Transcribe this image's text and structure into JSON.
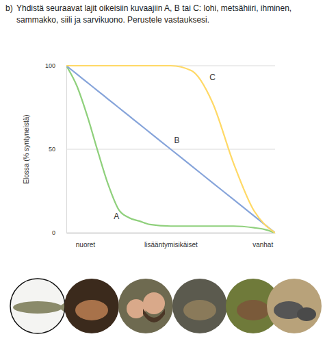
{
  "chart_data": {
    "type": "line",
    "title": "b) Yhdistä seuraavat lajit oikeisiin kuvaajiin A, B tai C: lohi, metsähiiri, ihminen, sammakko, siili ja sarvikuono. Perustele vastauksesi.",
    "y_label": "Elossa (% syntyneistä)",
    "x": [
      0,
      5,
      10,
      15,
      20,
      25,
      30,
      35,
      40,
      50,
      60,
      70,
      80,
      90,
      95,
      100
    ],
    "xlim": [
      0,
      100
    ],
    "xticks": [
      {
        "value": 9,
        "label": "nuoret"
      },
      {
        "value": 50,
        "label": "lisääntymisikäiset"
      },
      {
        "value": 94,
        "label": "vanhat"
      }
    ],
    "ylim": [
      0,
      100
    ],
    "yticks": [
      0,
      50,
      100
    ],
    "grid": true,
    "series": [
      {
        "name": "A",
        "color": "#8fd07c",
        "values": [
          100,
          88,
          70,
          49,
          29,
          14,
          9,
          7,
          5,
          4,
          4,
          4,
          4,
          3,
          2,
          0
        ]
      },
      {
        "name": "B",
        "color": "#86a4da",
        "values": [
          100,
          95,
          90,
          85,
          80,
          75,
          70,
          65,
          60,
          50,
          40,
          30,
          20,
          10,
          5,
          0
        ]
      },
      {
        "name": "C",
        "color": "#ffd966",
        "values": [
          100,
          100,
          100,
          100,
          100,
          100,
          100,
          100,
          100,
          100,
          97,
          78,
          42,
          13,
          5,
          0
        ]
      }
    ]
  }
}
